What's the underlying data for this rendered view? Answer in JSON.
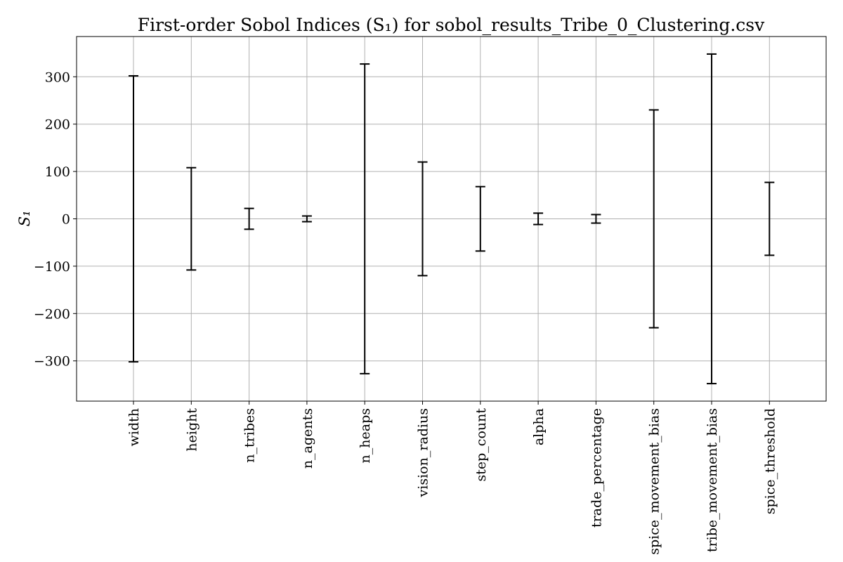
{
  "chart_data": {
    "type": "errorbar",
    "title": "First-order Sobol Indices (S₁) for sobol_results_Tribe_0_Clustering.csv",
    "xlabel": "",
    "ylabel": "S₁",
    "ylim": [
      -385,
      385
    ],
    "yticks": [
      300,
      200,
      100,
      0,
      -100,
      -200,
      -300
    ],
    "ytick_labels": [
      "300",
      "200",
      "100",
      "0",
      "−100",
      "−200",
      "−300"
    ],
    "grid": true,
    "categories": [
      "width",
      "height",
      "n_tribes",
      "n_agents",
      "n_heaps",
      "vision_radius",
      "step_count",
      "alpha",
      "trade_percentage",
      "spice_movement_bias",
      "tribe_movement_bias",
      "spice_threshold"
    ],
    "values": [
      0,
      0,
      0,
      0,
      0,
      0,
      0,
      0,
      0,
      0,
      0,
      0
    ],
    "errors": [
      302,
      108,
      22,
      6,
      327,
      120,
      68,
      12,
      9,
      230,
      348,
      77
    ]
  }
}
